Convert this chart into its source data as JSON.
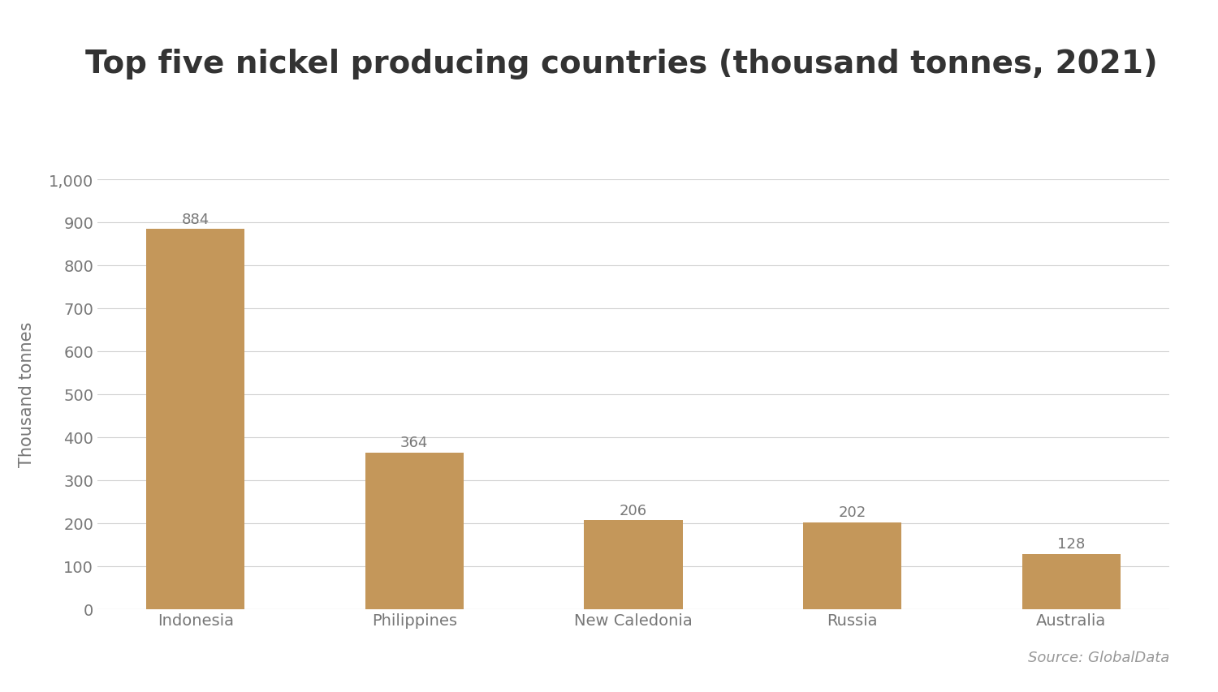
{
  "title": "Top five nickel producing countries (thousand tonnes, 2021)",
  "categories": [
    "Indonesia",
    "Philippines",
    "New Caledonia",
    "Russia",
    "Australia"
  ],
  "values": [
    884,
    364,
    206,
    202,
    128
  ],
  "bar_color": "#C4975A",
  "ylabel": "Thousand tonnes",
  "ylim": [
    0,
    1000
  ],
  "yticks": [
    0,
    100,
    200,
    300,
    400,
    500,
    600,
    700,
    800,
    900,
    1000
  ],
  "source_text": "Source: GlobalData",
  "title_fontsize": 28,
  "ylabel_fontsize": 15,
  "tick_fontsize": 14,
  "label_fontsize": 13,
  "source_fontsize": 13,
  "background_color": "#ffffff",
  "grid_color": "#d0d0d0",
  "tick_color": "#777777",
  "title_color": "#333333",
  "source_color": "#999999",
  "bar_width": 0.45
}
